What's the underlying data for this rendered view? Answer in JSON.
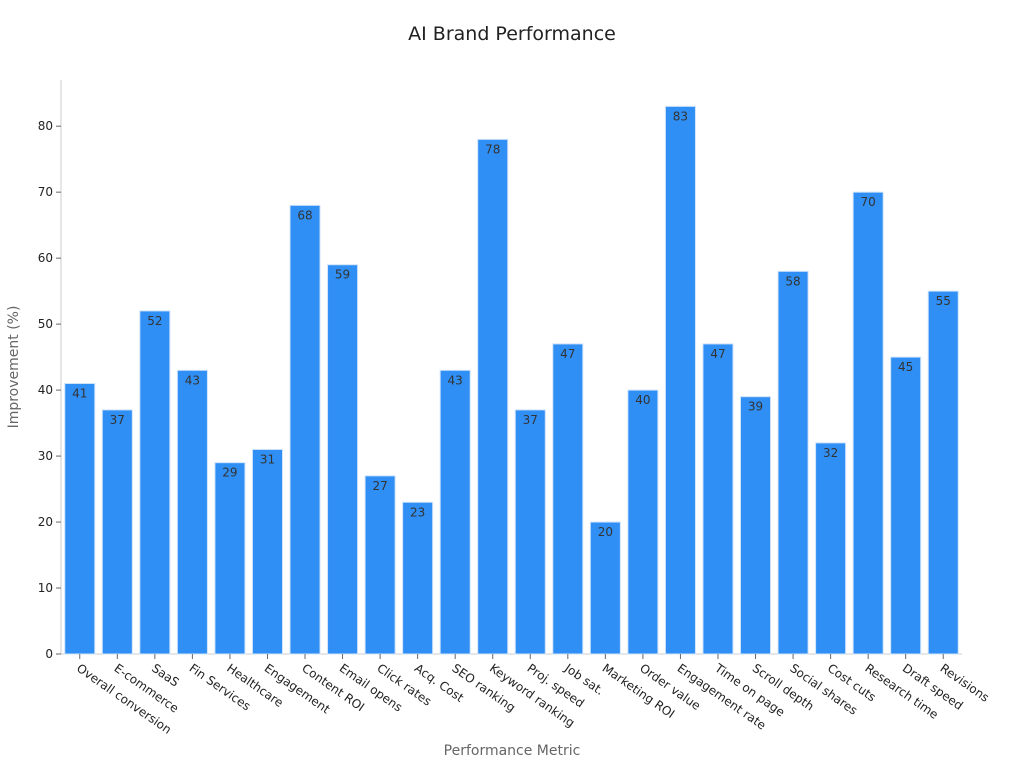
{
  "chart_data": {
    "type": "bar",
    "title": "AI Brand Performance",
    "xlabel": "Performance Metric",
    "ylabel": "Improvement (%)",
    "ylim": [
      0,
      87
    ],
    "yticks": [
      0,
      10,
      20,
      30,
      40,
      50,
      60,
      70,
      80
    ],
    "grid": false,
    "bar_color": "#2f8ff5",
    "bar_edge_color": "#cfe3fa",
    "categories": [
      "Overall conversion",
      "E-commerce",
      "SaaS",
      "Fin Services",
      "Healthcare",
      "Engagement",
      "Content ROI",
      "Email opens",
      "Click rates",
      "Acq. Cost",
      "SEO ranking",
      "Keyword ranking",
      "Proj. speed",
      "Job sat.",
      "Marketing ROI",
      "Order value",
      "Engagement rate",
      "Time on page",
      "Scroll depth",
      "Social shares",
      "Cost cuts",
      "Research time",
      "Draft speed",
      "Revisions"
    ],
    "values": [
      41,
      37,
      52,
      43,
      29,
      31,
      68,
      59,
      27,
      23,
      43,
      78,
      37,
      47,
      20,
      40,
      83,
      47,
      39,
      58,
      32,
      70,
      45,
      55
    ]
  }
}
